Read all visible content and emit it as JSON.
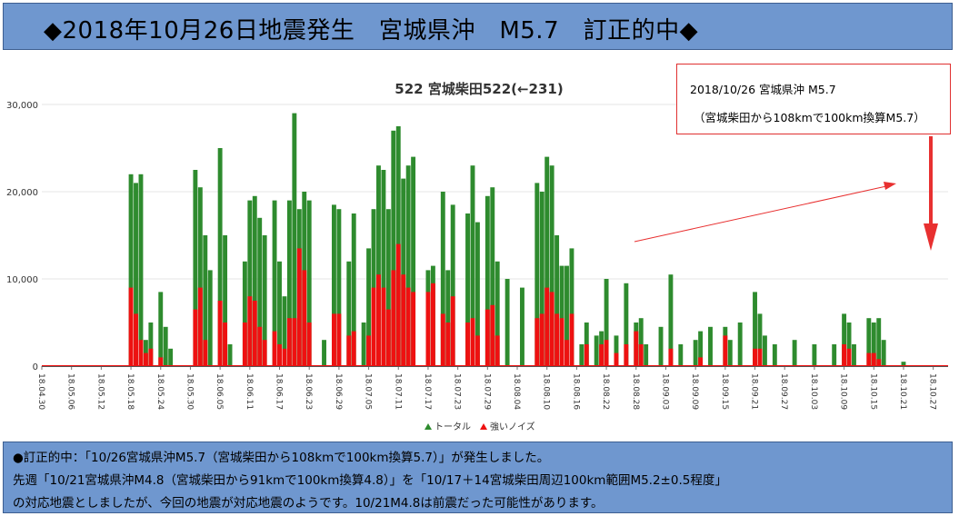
{
  "banner": {
    "title": "◆2018年10月26日地震発生　宮城県沖　M5.7　訂正的中◆"
  },
  "callout": {
    "line1": "2018/10/26 宮城県沖 M5.7",
    "line2": "（宮城柴田から108kmで100km換算M5.7）"
  },
  "note": {
    "line1": "●訂正的中：「10/26宮城県沖M5.7（宮城柴田から108kmで100km換算5.7）」が発生しました。",
    "line2": "先週「10/21宮城県沖M4.8（宮城柴田から91kmで100km換算4.8）」を「10/17＋14宮城柴田周辺100km範囲M5.2±0.5程度」",
    "line3": "の対応地震としましたが、今回の地震が対応地震のようです。10/21M4.8は前震だった可能性があります。"
  },
  "colors": {
    "total": "#2e8b2e",
    "noise": "#ee1111",
    "banner": "#6f97cf",
    "arrow": "#e83030"
  },
  "chart_data": {
    "type": "bar",
    "title": "522 宮城柴田522(←231)",
    "ylim": [
      0,
      30000
    ],
    "yticks": [
      0,
      10000,
      20000,
      30000
    ],
    "ytick_labels": [
      "0",
      "10,000",
      "20,000",
      "30,000"
    ],
    "xlim": [
      "2018-04-30",
      "2018-10-30"
    ],
    "xtick_labels": [
      "18.04.30",
      "18.05.06",
      "18.05.12",
      "18.05.18",
      "18.05.24",
      "18.05.30",
      "18.06.05",
      "18.06.11",
      "18.06.17",
      "18.06.23",
      "18.06.29",
      "18.07.05",
      "18.07.11",
      "18.07.17",
      "18.07.23",
      "18.07.29",
      "18.08.04",
      "18.08.10",
      "18.08.16",
      "18.08.22",
      "18.08.28",
      "18.09.03",
      "18.09.09",
      "18.09.15",
      "18.09.21",
      "18.09.27",
      "18.10.03",
      "18.10.09",
      "18.10.15",
      "18.10.21",
      "18.10.27"
    ],
    "legend": [
      "トータル",
      "強いノイズ"
    ],
    "legend_position": "bottom",
    "grid": true,
    "series": [
      {
        "name": "トータル",
        "color": "#2e8b2e",
        "x": [
          "2018-05-18",
          "2018-05-19",
          "2018-05-20",
          "2018-05-21",
          "2018-05-22",
          "2018-05-24",
          "2018-05-25",
          "2018-05-26",
          "2018-05-31",
          "2018-06-01",
          "2018-06-02",
          "2018-06-03",
          "2018-06-05",
          "2018-06-06",
          "2018-06-07",
          "2018-06-10",
          "2018-06-11",
          "2018-06-12",
          "2018-06-13",
          "2018-06-14",
          "2018-06-16",
          "2018-06-17",
          "2018-06-18",
          "2018-06-19",
          "2018-06-20",
          "2018-06-21",
          "2018-06-22",
          "2018-06-23",
          "2018-06-26",
          "2018-06-28",
          "2018-06-29",
          "2018-07-01",
          "2018-07-02",
          "2018-07-04",
          "2018-07-05",
          "2018-07-06",
          "2018-07-07",
          "2018-07-08",
          "2018-07-09",
          "2018-07-10",
          "2018-07-11",
          "2018-07-12",
          "2018-07-13",
          "2018-07-14",
          "2018-07-17",
          "2018-07-18",
          "2018-07-20",
          "2018-07-21",
          "2018-07-22",
          "2018-07-25",
          "2018-07-26",
          "2018-07-27",
          "2018-07-29",
          "2018-07-30",
          "2018-07-31",
          "2018-08-02",
          "2018-08-05",
          "2018-08-08",
          "2018-08-09",
          "2018-08-10",
          "2018-08-11",
          "2018-08-12",
          "2018-08-13",
          "2018-08-14",
          "2018-08-15",
          "2018-08-17",
          "2018-08-18",
          "2018-08-20",
          "2018-08-21",
          "2018-08-22",
          "2018-08-24",
          "2018-08-26",
          "2018-08-28",
          "2018-08-29",
          "2018-08-30",
          "2018-09-02",
          "2018-09-04",
          "2018-09-06",
          "2018-09-09",
          "2018-09-10",
          "2018-09-12",
          "2018-09-15",
          "2018-09-16",
          "2018-09-18",
          "2018-09-21",
          "2018-09-22",
          "2018-09-23",
          "2018-09-25",
          "2018-09-29",
          "2018-10-03",
          "2018-10-07",
          "2018-10-09",
          "2018-10-10",
          "2018-10-11",
          "2018-10-14",
          "2018-10-15",
          "2018-10-16",
          "2018-10-17",
          "2018-10-21"
        ],
        "values": [
          22000,
          21000,
          22000,
          3000,
          5000,
          8500,
          4500,
          2000,
          22500,
          20500,
          15000,
          11000,
          25000,
          15000,
          2500,
          12000,
          19000,
          19500,
          17000,
          15000,
          19000,
          12000,
          8000,
          19000,
          29000,
          18000,
          20000,
          19000,
          3000,
          18500,
          18000,
          12000,
          17500,
          5000,
          13500,
          18000,
          23000,
          22500,
          18000,
          27000,
          27500,
          21500,
          23000,
          24000,
          11000,
          11500,
          20000,
          11000,
          18500,
          17500,
          23000,
          16500,
          19500,
          20500,
          12000,
          10000,
          9000,
          21000,
          20000,
          24000,
          23000,
          15000,
          11500,
          11500,
          13500,
          2500,
          5000,
          3500,
          4000,
          10000,
          3500,
          9500,
          5000,
          5500,
          2500,
          4500,
          10500,
          2500,
          3000,
          4000,
          4500,
          4500,
          3000,
          5000,
          8500,
          6000,
          3500,
          2500,
          3000,
          2500,
          2500,
          6000,
          5000,
          2500,
          5500,
          5000,
          5500,
          3000,
          500
        ]
      },
      {
        "name": "強いノイズ",
        "color": "#ee1111",
        "x": [
          "2018-05-18",
          "2018-05-19",
          "2018-05-20",
          "2018-05-21",
          "2018-05-22",
          "2018-05-24",
          "2018-05-31",
          "2018-06-01",
          "2018-06-02",
          "2018-06-05",
          "2018-06-06",
          "2018-06-10",
          "2018-06-11",
          "2018-06-12",
          "2018-06-13",
          "2018-06-14",
          "2018-06-16",
          "2018-06-17",
          "2018-06-18",
          "2018-06-19",
          "2018-06-20",
          "2018-06-21",
          "2018-06-22",
          "2018-06-23",
          "2018-06-28",
          "2018-06-29",
          "2018-07-01",
          "2018-07-02",
          "2018-07-05",
          "2018-07-06",
          "2018-07-07",
          "2018-07-08",
          "2018-07-09",
          "2018-07-10",
          "2018-07-11",
          "2018-07-12",
          "2018-07-13",
          "2018-07-14",
          "2018-07-17",
          "2018-07-18",
          "2018-07-20",
          "2018-07-21",
          "2018-07-22",
          "2018-07-25",
          "2018-07-26",
          "2018-07-27",
          "2018-07-29",
          "2018-07-30",
          "2018-07-31",
          "2018-08-08",
          "2018-08-09",
          "2018-08-10",
          "2018-08-11",
          "2018-08-12",
          "2018-08-13",
          "2018-08-14",
          "2018-08-15",
          "2018-08-18",
          "2018-08-21",
          "2018-08-22",
          "2018-08-24",
          "2018-08-26",
          "2018-08-28",
          "2018-08-29",
          "2018-09-04",
          "2018-09-10",
          "2018-09-15",
          "2018-09-21",
          "2018-09-22",
          "2018-10-09",
          "2018-10-10",
          "2018-10-14",
          "2018-10-15",
          "2018-10-16"
        ],
        "values": [
          9000,
          6000,
          3000,
          1500,
          2000,
          1000,
          6500,
          9000,
          3000,
          7500,
          5000,
          5000,
          8000,
          7500,
          4500,
          3000,
          4000,
          2500,
          2000,
          5500,
          5500,
          13500,
          11000,
          5000,
          6000,
          6000,
          3500,
          4000,
          3500,
          9000,
          10500,
          9000,
          6500,
          11000,
          14000,
          10500,
          9000,
          8500,
          8500,
          9500,
          6000,
          5000,
          8000,
          5000,
          5500,
          3500,
          6500,
          7000,
          3500,
          5500,
          6000,
          9000,
          8500,
          6000,
          5500,
          3000,
          6000,
          2500,
          2500,
          3000,
          1500,
          2500,
          4000,
          2500,
          2000,
          1000,
          3500,
          2000,
          2000,
          2500,
          2000,
          1500,
          1500,
          800
        ]
      }
    ]
  }
}
